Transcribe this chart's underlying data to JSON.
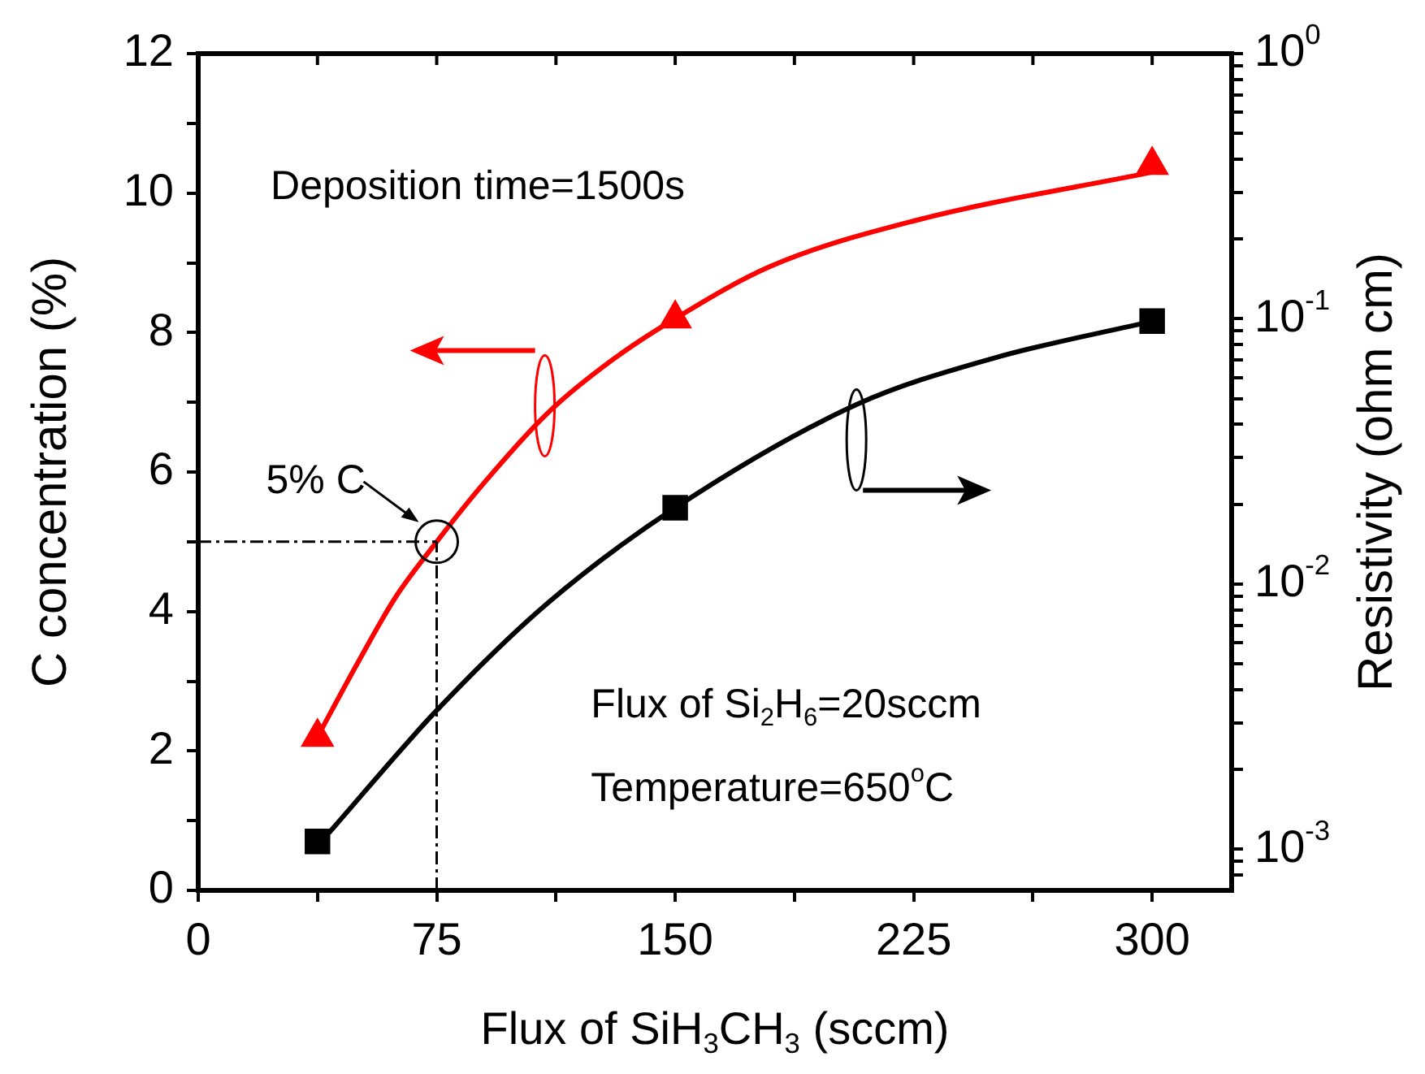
{
  "chart_data": {
    "type": "scatter",
    "xlabel": "Flux of SiH$_{3}$CH$_{3}$ (sccm)",
    "ylabel": "C concentration (%)",
    "y2label": "Resistivity (ohm cm)",
    "series": [
      {
        "color": "#ff0000",
        "marker": "triangle",
        "x": [
          37.5,
          150,
          300
        ],
        "values": [
          2.2,
          8.2,
          10.4
        ]
      },
      {
        "type": "line",
        "color": "#ff0000",
        "marker": "none",
        "x": [
          37.5,
          50,
          62,
          75,
          90,
          110,
          130,
          150,
          180,
          225,
          300
        ],
        "values": [
          2.2,
          3.25,
          4.2,
          5.0,
          5.85,
          6.85,
          7.6,
          8.2,
          8.95,
          9.6,
          10.3
        ]
      },
      {
        "color": "#000000",
        "marker": "square",
        "axis": "y2",
        "x": [
          37.5,
          150,
          300
        ],
        "values": [
          0.00107,
          0.0194,
          0.098
        ]
      },
      {
        "type": "line",
        "color": "#000000",
        "marker": "none",
        "axis": "y2",
        "x": [
          41,
          75,
          110,
          150,
          207,
          250,
          300
        ],
        "values": [
          0.00115,
          0.00334,
          0.0085,
          0.0194,
          0.0475,
          0.071,
          0.098
        ]
      }
    ],
    "xlim": [
      0,
      325
    ],
    "xticks": [
      0,
      {
        "value": 37.5,
        "label": null
      },
      75,
      {
        "value": 112.5,
        "label": null
      },
      150,
      {
        "value": 187.5,
        "label": null
      },
      225,
      {
        "value": 262.5,
        "label": null
      },
      300
    ],
    "ylim": [
      0,
      12
    ],
    "yticks": [
      0,
      {
        "value": 1,
        "label": null
      },
      2,
      {
        "value": 3,
        "label": null
      },
      4,
      {
        "value": 5,
        "label": null
      },
      6,
      {
        "value": 7,
        "label": null
      },
      8,
      {
        "value": 9,
        "label": null
      },
      10,
      {
        "value": 11,
        "label": null
      },
      12
    ],
    "log": "y2",
    "y2lim": [
      0.0007,
      1
    ],
    "y2ticks": [
      {
        "value": 0.0008,
        "label": null
      },
      {
        "value": 0.0009,
        "label": null
      },
      {
        "value": 0.001,
        "label": "10$^{-3}$"
      },
      {
        "value": 0.002,
        "label": null
      },
      {
        "value": 0.003,
        "label": null
      },
      {
        "value": 0.004,
        "label": null
      },
      {
        "value": 0.005,
        "label": null
      },
      {
        "value": 0.006,
        "label": null
      },
      {
        "value": 0.007,
        "label": null
      },
      {
        "value": 0.008,
        "label": null
      },
      {
        "value": 0.009,
        "label": null
      },
      {
        "value": 0.01,
        "label": "10$^{-2}$"
      },
      {
        "value": 0.02,
        "label": null
      },
      {
        "value": 0.03,
        "label": null
      },
      {
        "value": 0.04,
        "label": null
      },
      {
        "value": 0.05,
        "label": null
      },
      {
        "value": 0.06,
        "label": null
      },
      {
        "value": 0.07,
        "label": null
      },
      {
        "value": 0.08,
        "label": null
      },
      {
        "value": 0.09,
        "label": null
      },
      {
        "value": 0.1,
        "label": "10$^{-1}$"
      },
      {
        "value": 0.2,
        "label": null
      },
      {
        "value": 0.3,
        "label": null
      },
      {
        "value": 0.4,
        "label": null
      },
      {
        "value": 0.5,
        "label": null
      },
      {
        "value": 0.6,
        "label": null
      },
      {
        "value": 0.7,
        "label": null
      },
      {
        "value": 0.8,
        "label": null
      },
      {
        "value": 0.9,
        "label": null
      },
      {
        "value": 1,
        "label": "10$^{0}$"
      }
    ],
    "ref_lines": [
      {
        "axis": "y",
        "value": 5,
        "line_style": "dashdot",
        "color": "#000000"
      },
      {
        "axis": "x",
        "value": 75,
        "line_style": "dashdot",
        "color": "#000000"
      }
    ],
    "annotations": [
      "Deposition time=1500s",
      {
        "text": "5% C",
        "x": 75,
        "y": 5
      },
      "Flux of Si$_{2}$H$_{6}$=20sccm",
      "Temperature=650$^{o}$C"
    ],
    "grid": false,
    "legend": false
  }
}
